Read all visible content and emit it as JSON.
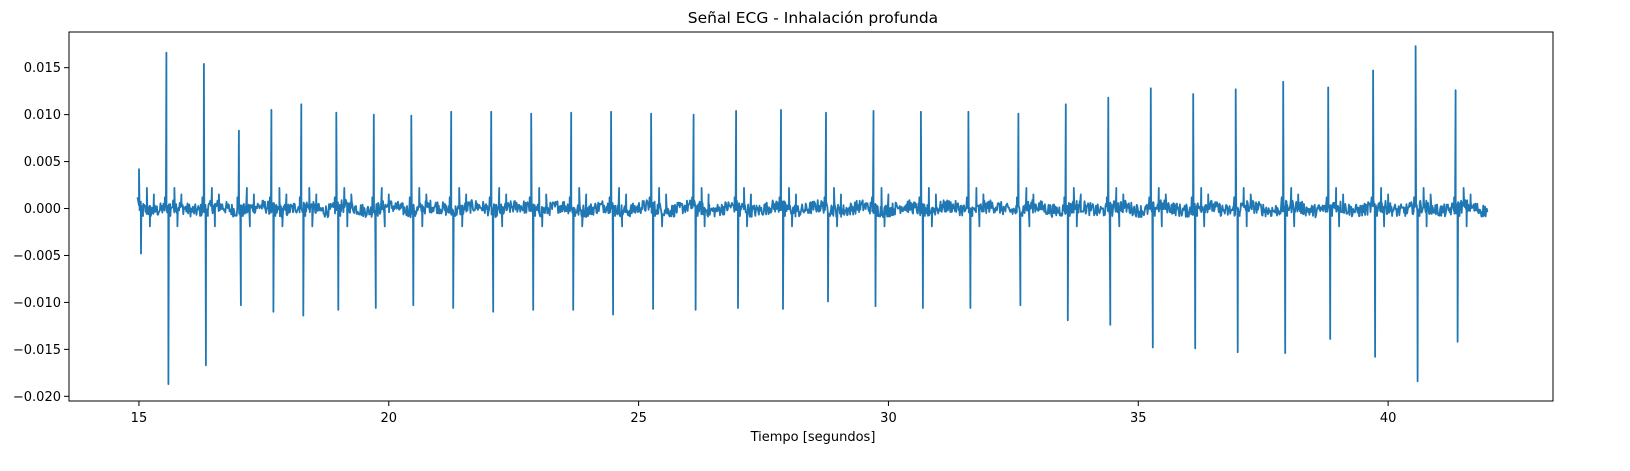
{
  "chart_data": {
    "type": "line",
    "title": "Señal ECG - Inhalación profunda",
    "xlabel": "Tiempo [segundos]",
    "ylabel": "",
    "xlim": [
      13.6,
      43.3
    ],
    "ylim": [
      -0.0205,
      0.0188
    ],
    "grid": false,
    "legend": "none",
    "color": "#1f77b4",
    "x_ticks": [
      {
        "value": 15,
        "label": "15"
      },
      {
        "value": 20,
        "label": "20"
      },
      {
        "value": 25,
        "label": "25"
      },
      {
        "value": 30,
        "label": "30"
      },
      {
        "value": 35,
        "label": "35"
      },
      {
        "value": 40,
        "label": "40"
      }
    ],
    "y_ticks": [
      {
        "value": 0.015,
        "label": "0.015"
      },
      {
        "value": 0.01,
        "label": "0.010"
      },
      {
        "value": 0.005,
        "label": "0.005"
      },
      {
        "value": 0.0,
        "label": "0.000"
      },
      {
        "value": -0.005,
        "label": "−0.005"
      },
      {
        "value": -0.01,
        "label": "−0.010"
      },
      {
        "value": -0.015,
        "label": "−0.015"
      },
      {
        "value": -0.02,
        "label": "−0.020"
      }
    ],
    "series": [
      {
        "x_start": 15.0,
        "x_end": 42.0,
        "beats": [
          {
            "t": 15.0,
            "peak": 0.0042,
            "trough": -0.0048
          },
          {
            "t": 15.55,
            "peak": 0.0166,
            "trough": -0.0187
          },
          {
            "t": 16.3,
            "peak": 0.0154,
            "trough": -0.0167
          },
          {
            "t": 17.0,
            "peak": 0.0083,
            "trough": -0.0103
          },
          {
            "t": 17.65,
            "peak": 0.0105,
            "trough": -0.011
          },
          {
            "t": 18.25,
            "peak": 0.0111,
            "trough": -0.0114
          },
          {
            "t": 18.95,
            "peak": 0.0102,
            "trough": -0.0108
          },
          {
            "t": 19.7,
            "peak": 0.01,
            "trough": -0.0106
          },
          {
            "t": 20.45,
            "peak": 0.0099,
            "trough": -0.0103
          },
          {
            "t": 21.25,
            "peak": 0.0103,
            "trough": -0.0106
          },
          {
            "t": 22.05,
            "peak": 0.0103,
            "trough": -0.011
          },
          {
            "t": 22.85,
            "peak": 0.0101,
            "trough": -0.0108
          },
          {
            "t": 23.65,
            "peak": 0.0102,
            "trough": -0.0108
          },
          {
            "t": 24.45,
            "peak": 0.0103,
            "trough": -0.0113
          },
          {
            "t": 25.25,
            "peak": 0.0101,
            "trough": -0.0107
          },
          {
            "t": 26.1,
            "peak": 0.01,
            "trough": -0.0108
          },
          {
            "t": 26.95,
            "peak": 0.0104,
            "trough": -0.0106
          },
          {
            "t": 27.85,
            "peak": 0.0105,
            "trough": -0.0107
          },
          {
            "t": 28.75,
            "peak": 0.0102,
            "trough": -0.0099
          },
          {
            "t": 29.7,
            "peak": 0.0104,
            "trough": -0.0104
          },
          {
            "t": 30.65,
            "peak": 0.0103,
            "trough": -0.0106
          },
          {
            "t": 31.6,
            "peak": 0.0103,
            "trough": -0.0106
          },
          {
            "t": 32.6,
            "peak": 0.0101,
            "trough": -0.0103
          },
          {
            "t": 33.55,
            "peak": 0.0111,
            "trough": -0.0119
          },
          {
            "t": 34.4,
            "peak": 0.0118,
            "trough": -0.0124
          },
          {
            "t": 35.25,
            "peak": 0.0128,
            "trough": -0.0148
          },
          {
            "t": 36.1,
            "peak": 0.0122,
            "trough": -0.0149
          },
          {
            "t": 36.95,
            "peak": 0.0127,
            "trough": -0.0153
          },
          {
            "t": 37.9,
            "peak": 0.0135,
            "trough": -0.0154
          },
          {
            "t": 38.8,
            "peak": 0.0129,
            "trough": -0.0139
          },
          {
            "t": 39.7,
            "peak": 0.0147,
            "trough": -0.0158
          },
          {
            "t": 40.55,
            "peak": 0.0173,
            "trough": -0.0184
          },
          {
            "t": 41.35,
            "peak": 0.0126,
            "trough": -0.0142
          }
        ]
      }
    ]
  }
}
